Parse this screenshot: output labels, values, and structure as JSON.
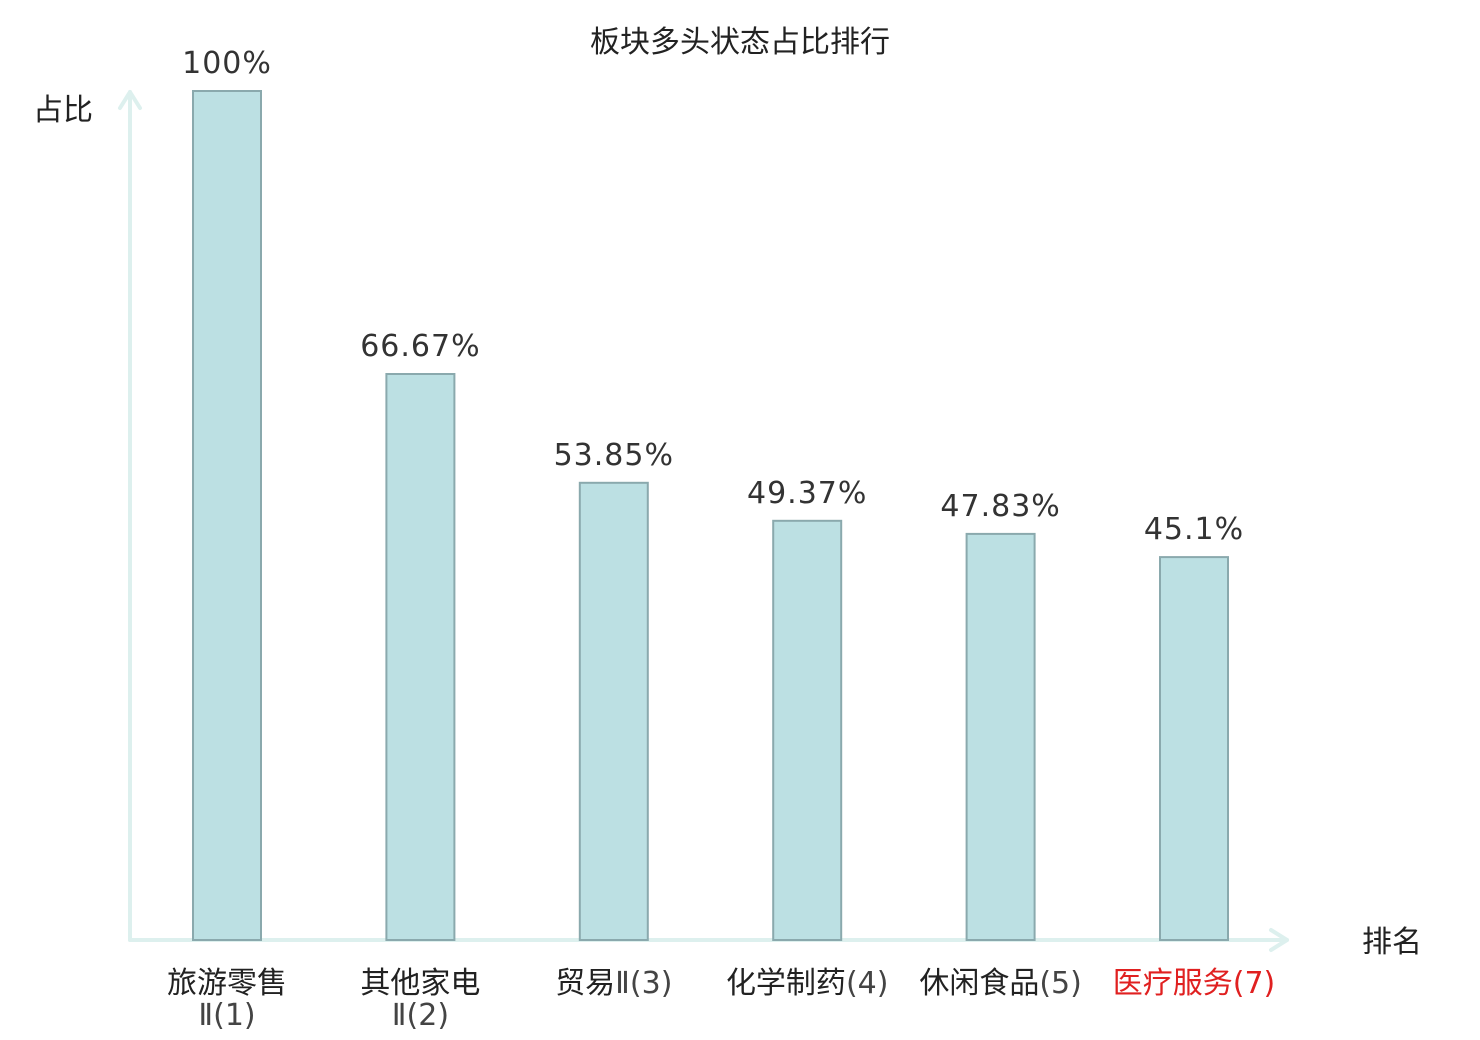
{
  "chart_data": {
    "type": "bar",
    "title": "板块多头状态占比排行",
    "xlabel": "排名",
    "ylabel": "占比",
    "ylim": [
      0,
      100
    ],
    "grid": false,
    "categories": [
      {
        "name": "旅游零售",
        "suffix": "Ⅱ(1)",
        "wrap": true,
        "highlight": false
      },
      {
        "name": "其他家电",
        "suffix": "Ⅱ(2)",
        "wrap": true,
        "highlight": false
      },
      {
        "name": "贸易",
        "suffix": "Ⅱ(3)",
        "wrap": false,
        "highlight": false
      },
      {
        "name": "化学制药",
        "suffix": "(4)",
        "wrap": false,
        "highlight": false
      },
      {
        "name": "休闲食品",
        "suffix": "(5)",
        "wrap": false,
        "highlight": false
      },
      {
        "name": "医疗服务",
        "suffix": "(7)",
        "wrap": false,
        "highlight": true
      }
    ],
    "values": [
      100,
      66.67,
      53.85,
      49.37,
      47.83,
      45.1
    ],
    "value_labels": [
      "100%",
      "66.67%",
      "53.85%",
      "49.37%",
      "47.83%",
      "45.1%"
    ],
    "colors": {
      "bar_fill": "#bce0e3",
      "bar_stroke": "#8aa9ad",
      "axis": "#ddf0ee",
      "highlight": "#e02020",
      "label": "#222222",
      "suffix": "#444444"
    }
  }
}
